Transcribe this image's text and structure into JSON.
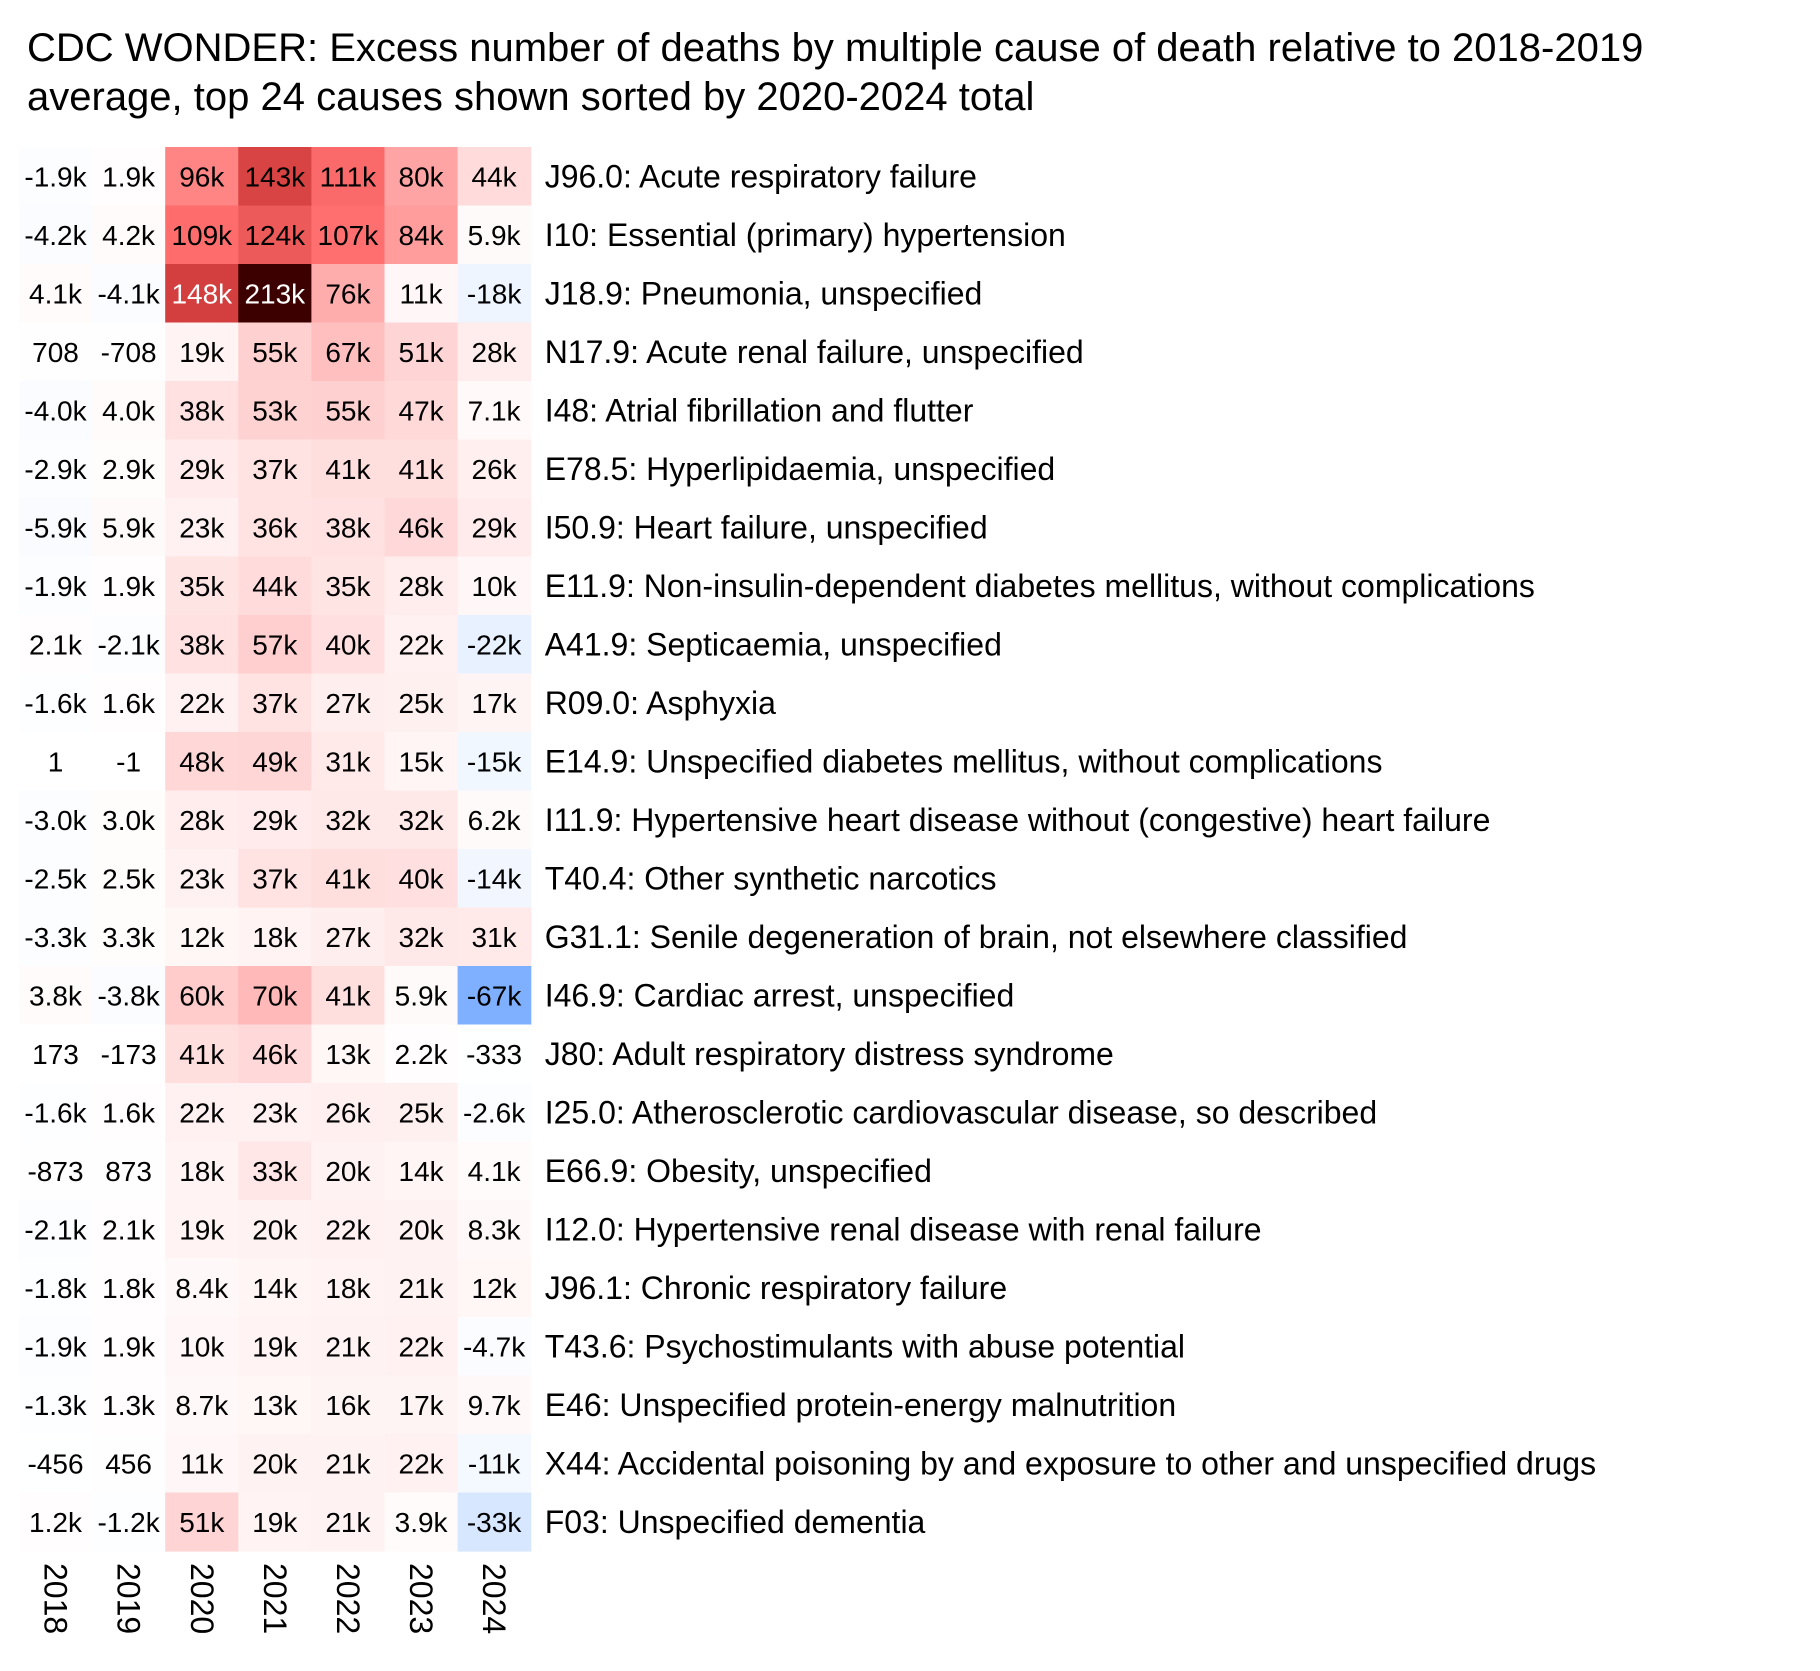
{
  "chart_data": {
    "type": "heatmap",
    "title": "CDC WONDER: Excess number of deaths by multiple cause of death relative to 2018-2019 average, top 24 causes shown sorted by 2020-2024 total",
    "columns": [
      "2018",
      "2019",
      "2020",
      "2021",
      "2022",
      "2023",
      "2024"
    ],
    "rows": [
      {
        "label": "J96.0: Acute respiratory failure",
        "values": [
          -1900,
          1900,
          96000,
          143000,
          111000,
          80000,
          44000
        ],
        "display": [
          "-1.9k",
          "1.9k",
          "96k",
          "143k",
          "111k",
          "80k",
          "44k"
        ]
      },
      {
        "label": "I10: Essential (primary) hypertension",
        "values": [
          -4200,
          4200,
          109000,
          124000,
          107000,
          84000,
          5900
        ],
        "display": [
          "-4.2k",
          "4.2k",
          "109k",
          "124k",
          "107k",
          "84k",
          "5.9k"
        ]
      },
      {
        "label": "J18.9: Pneumonia, unspecified",
        "values": [
          4100,
          -4100,
          148000,
          213000,
          76000,
          11000,
          -18000
        ],
        "display": [
          "4.1k",
          "-4.1k",
          "148k",
          "213k",
          "76k",
          "11k",
          "-18k"
        ]
      },
      {
        "label": "N17.9: Acute renal failure, unspecified",
        "values": [
          708,
          -708,
          19000,
          55000,
          67000,
          51000,
          28000
        ],
        "display": [
          "708",
          "-708",
          "19k",
          "55k",
          "67k",
          "51k",
          "28k"
        ]
      },
      {
        "label": "I48: Atrial fibrillation and flutter",
        "values": [
          -4000,
          4000,
          38000,
          53000,
          55000,
          47000,
          7100
        ],
        "display": [
          "-4.0k",
          "4.0k",
          "38k",
          "53k",
          "55k",
          "47k",
          "7.1k"
        ]
      },
      {
        "label": "E78.5: Hyperlipidaemia, unspecified",
        "values": [
          -2900,
          2900,
          29000,
          37000,
          41000,
          41000,
          26000
        ],
        "display": [
          "-2.9k",
          "2.9k",
          "29k",
          "37k",
          "41k",
          "41k",
          "26k"
        ]
      },
      {
        "label": "I50.9: Heart failure, unspecified",
        "values": [
          -5900,
          5900,
          23000,
          36000,
          38000,
          46000,
          29000
        ],
        "display": [
          "-5.9k",
          "5.9k",
          "23k",
          "36k",
          "38k",
          "46k",
          "29k"
        ]
      },
      {
        "label": "E11.9: Non-insulin-dependent diabetes mellitus, without complications",
        "values": [
          -1900,
          1900,
          35000,
          44000,
          35000,
          28000,
          10000
        ],
        "display": [
          "-1.9k",
          "1.9k",
          "35k",
          "44k",
          "35k",
          "28k",
          "10k"
        ]
      },
      {
        "label": "A41.9: Septicaemia, unspecified",
        "values": [
          2100,
          -2100,
          38000,
          57000,
          40000,
          22000,
          -22000
        ],
        "display": [
          "2.1k",
          "-2.1k",
          "38k",
          "57k",
          "40k",
          "22k",
          "-22k"
        ]
      },
      {
        "label": "R09.0: Asphyxia",
        "values": [
          -1600,
          1600,
          22000,
          37000,
          27000,
          25000,
          17000
        ],
        "display": [
          "-1.6k",
          "1.6k",
          "22k",
          "37k",
          "27k",
          "25k",
          "17k"
        ]
      },
      {
        "label": "E14.9: Unspecified diabetes mellitus, without complications",
        "values": [
          1,
          -1,
          48000,
          49000,
          31000,
          15000,
          -15000
        ],
        "display": [
          "1",
          "-1",
          "48k",
          "49k",
          "31k",
          "15k",
          "-15k"
        ]
      },
      {
        "label": "I11.9: Hypertensive heart disease without (congestive) heart failure",
        "values": [
          -3000,
          3000,
          28000,
          29000,
          32000,
          32000,
          6200
        ],
        "display": [
          "-3.0k",
          "3.0k",
          "28k",
          "29k",
          "32k",
          "32k",
          "6.2k"
        ]
      },
      {
        "label": "T40.4: Other synthetic narcotics",
        "values": [
          -2500,
          2500,
          23000,
          37000,
          41000,
          40000,
          -14000
        ],
        "display": [
          "-2.5k",
          "2.5k",
          "23k",
          "37k",
          "41k",
          "40k",
          "-14k"
        ]
      },
      {
        "label": "G31.1: Senile degeneration of brain, not elsewhere classified",
        "values": [
          -3300,
          3300,
          12000,
          18000,
          27000,
          32000,
          31000
        ],
        "display": [
          "-3.3k",
          "3.3k",
          "12k",
          "18k",
          "27k",
          "32k",
          "31k"
        ]
      },
      {
        "label": "I46.9: Cardiac arrest, unspecified",
        "values": [
          3800,
          -3800,
          60000,
          70000,
          41000,
          5900,
          -67000
        ],
        "display": [
          "3.8k",
          "-3.8k",
          "60k",
          "70k",
          "41k",
          "5.9k",
          "-67k"
        ]
      },
      {
        "label": "J80: Adult respiratory distress syndrome",
        "values": [
          173,
          -173,
          41000,
          46000,
          13000,
          2200,
          -333
        ],
        "display": [
          "173",
          "-173",
          "41k",
          "46k",
          "13k",
          "2.2k",
          "-333"
        ]
      },
      {
        "label": "I25.0: Atherosclerotic cardiovascular disease, so described",
        "values": [
          -1600,
          1600,
          22000,
          23000,
          26000,
          25000,
          -2600
        ],
        "display": [
          "-1.6k",
          "1.6k",
          "22k",
          "23k",
          "26k",
          "25k",
          "-2.6k"
        ]
      },
      {
        "label": "E66.9: Obesity, unspecified",
        "values": [
          -873,
          873,
          18000,
          33000,
          20000,
          14000,
          4100
        ],
        "display": [
          "-873",
          "873",
          "18k",
          "33k",
          "20k",
          "14k",
          "4.1k"
        ]
      },
      {
        "label": "I12.0: Hypertensive renal disease with renal failure",
        "values": [
          -2100,
          2100,
          19000,
          20000,
          22000,
          20000,
          8300
        ],
        "display": [
          "-2.1k",
          "2.1k",
          "19k",
          "20k",
          "22k",
          "20k",
          "8.3k"
        ]
      },
      {
        "label": "J96.1: Chronic respiratory failure",
        "values": [
          -1800,
          1800,
          8400,
          14000,
          18000,
          21000,
          12000
        ],
        "display": [
          "-1.8k",
          "1.8k",
          "8.4k",
          "14k",
          "18k",
          "21k",
          "12k"
        ]
      },
      {
        "label": "T43.6: Psychostimulants with abuse potential",
        "values": [
          -1900,
          1900,
          10000,
          19000,
          21000,
          22000,
          -4700
        ],
        "display": [
          "-1.9k",
          "1.9k",
          "10k",
          "19k",
          "21k",
          "22k",
          "-4.7k"
        ]
      },
      {
        "label": "E46: Unspecified protein-energy malnutrition",
        "values": [
          -1300,
          1300,
          8700,
          13000,
          16000,
          17000,
          9700
        ],
        "display": [
          "-1.3k",
          "1.3k",
          "8.7k",
          "13k",
          "16k",
          "17k",
          "9.7k"
        ]
      },
      {
        "label": "X44: Accidental poisoning by and exposure to other and unspecified drugs",
        "values": [
          -456,
          456,
          11000,
          20000,
          21000,
          22000,
          -11000
        ],
        "display": [
          "-456",
          "456",
          "11k",
          "20k",
          "21k",
          "22k",
          "-11k"
        ]
      },
      {
        "label": "F03: Unspecified dementia",
        "values": [
          1200,
          -1200,
          51000,
          19000,
          21000,
          3900,
          -33000
        ],
        "display": [
          "1.2k",
          "-1.2k",
          "51k",
          "19k",
          "21k",
          "3.9k",
          "-33k"
        ]
      }
    ],
    "color_scale": {
      "type": "diverging",
      "center": 0,
      "negative": [
        "#ffffff",
        "#f0f6ff",
        "#cce0ff",
        "#7fb0ff"
      ],
      "positive": [
        "#ffffff",
        "#fff0f0",
        "#ffc8c8",
        "#ff6e6e",
        "#c83232",
        "#3c0000"
      ]
    }
  }
}
